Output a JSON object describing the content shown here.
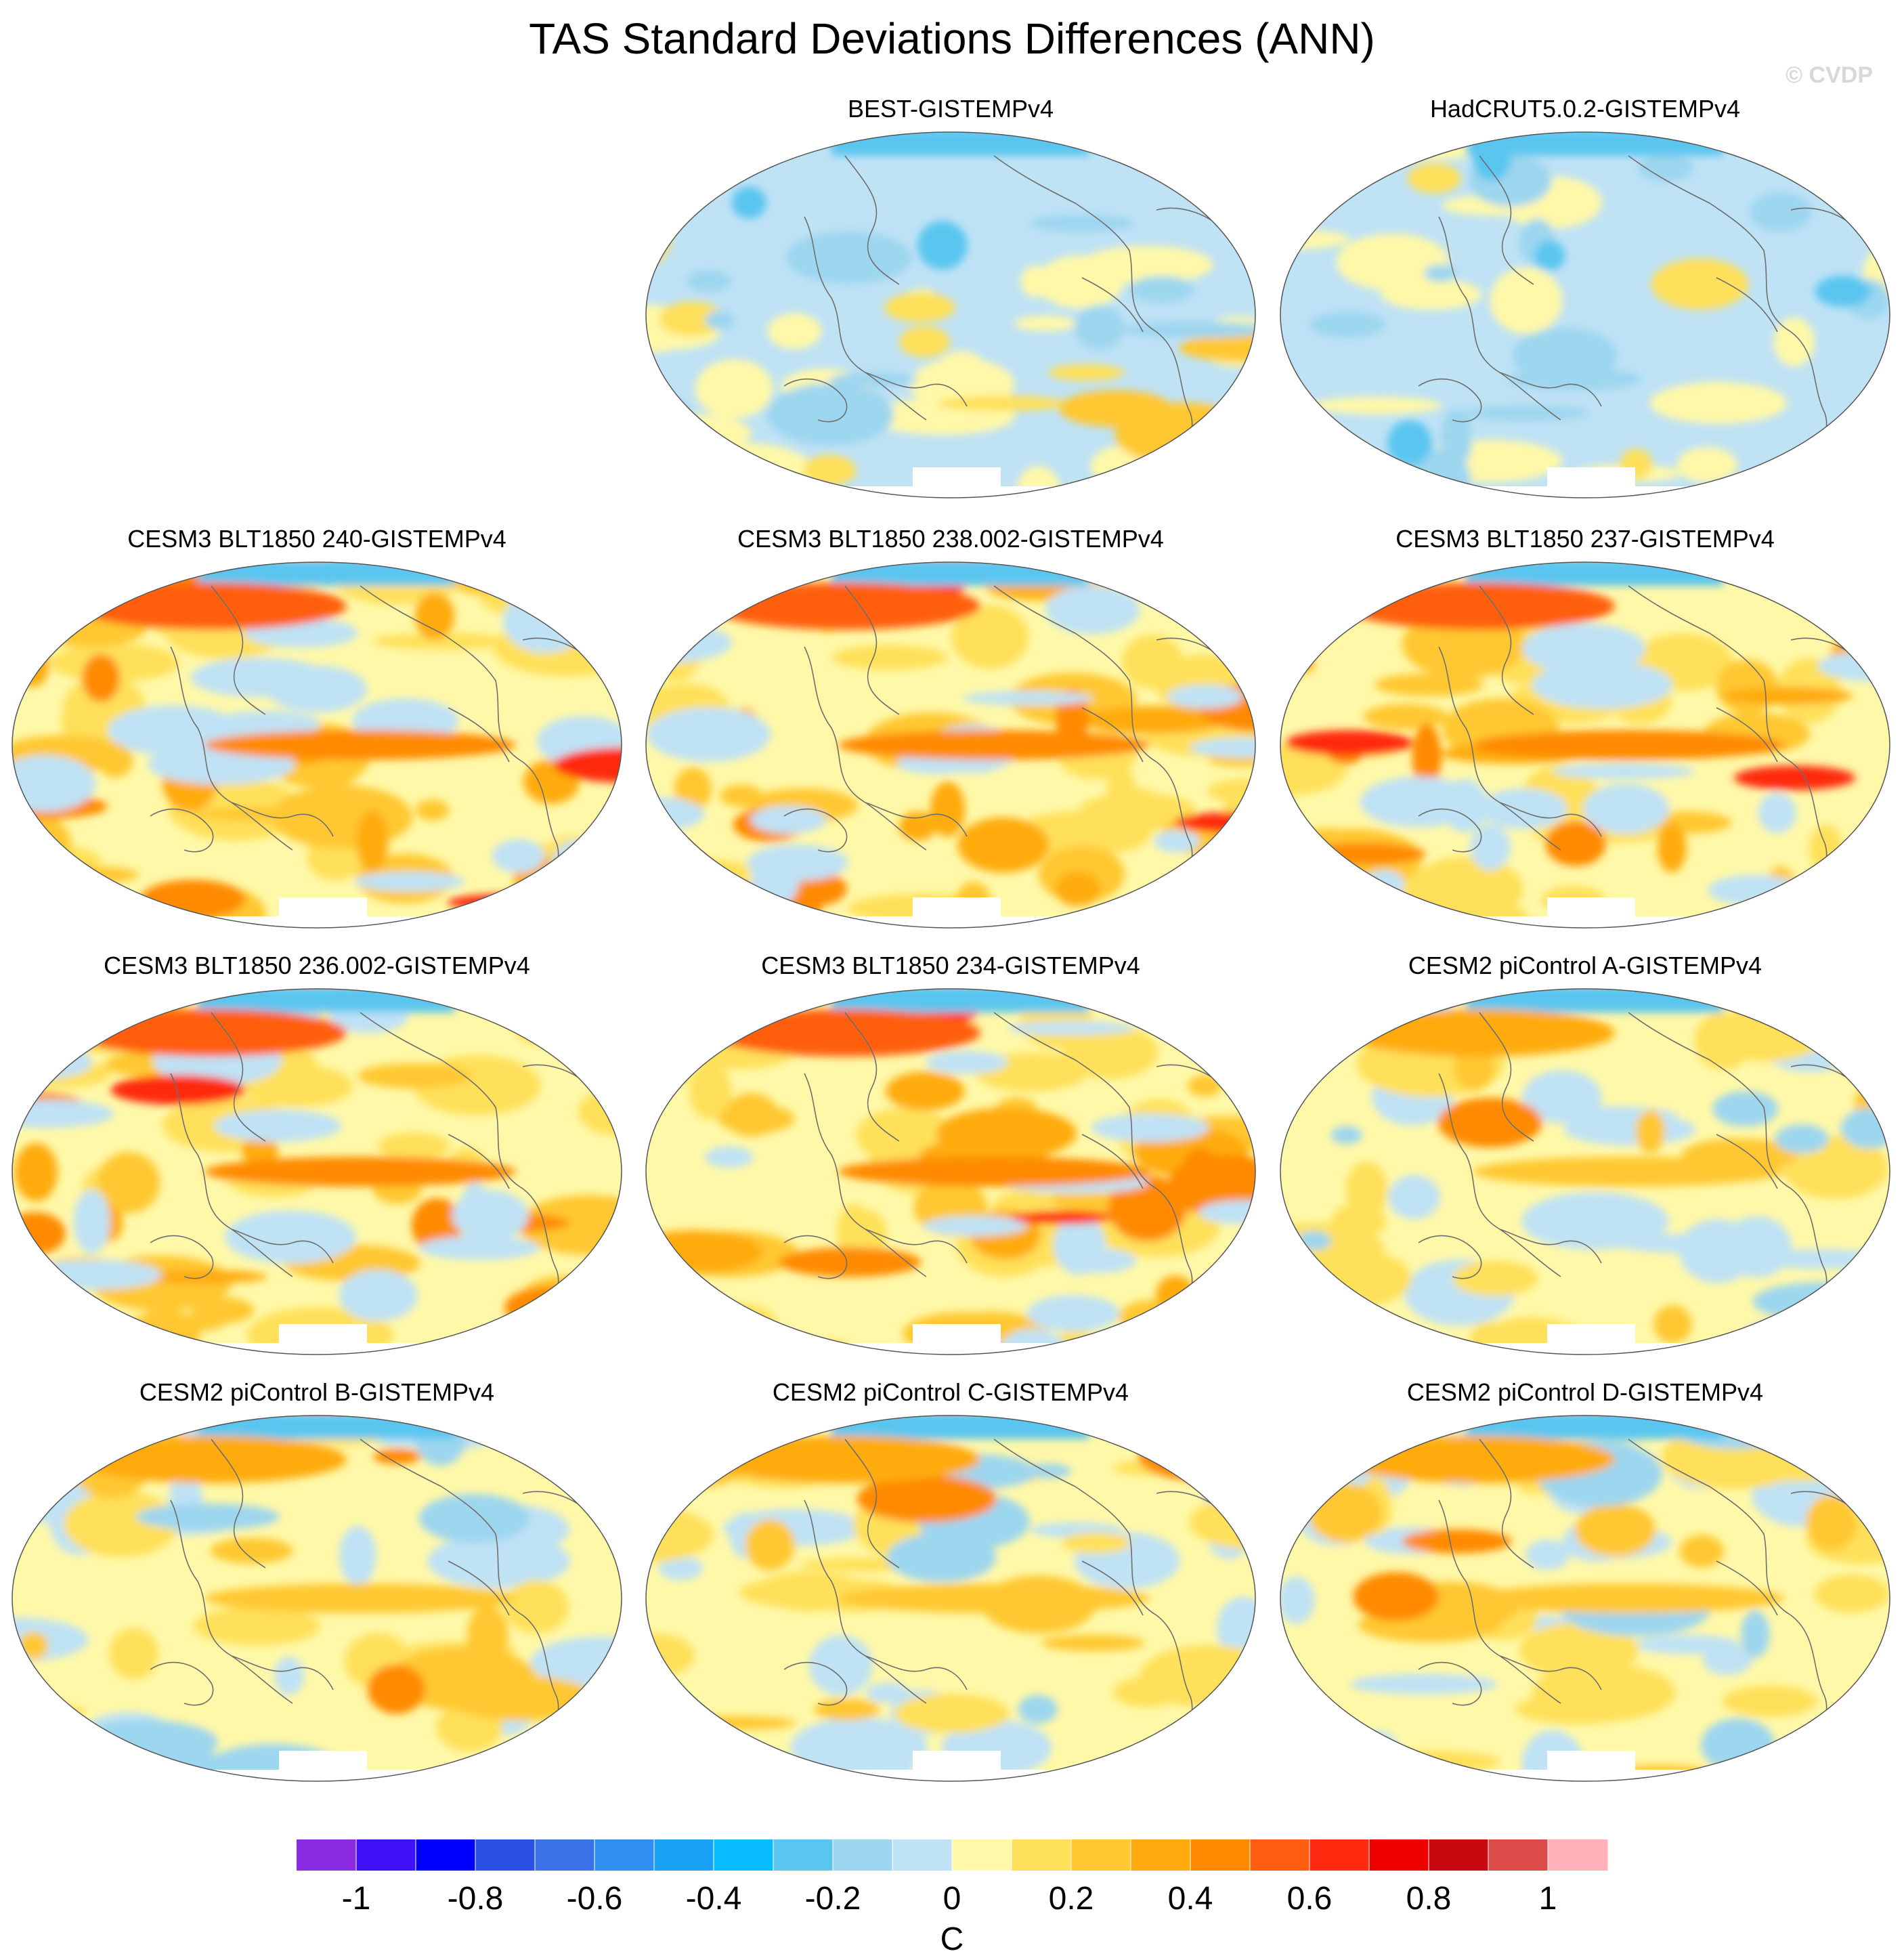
{
  "title": "TAS Standard Deviations Differences (ANN)",
  "credit": "© CVDP",
  "panels": [
    {
      "label": "BEST-GISTEMPv4",
      "style": "obs1"
    },
    {
      "label": "HadCRUT5.0.2-GISTEMPv4",
      "style": "obs2"
    },
    {
      "label": "CESM3 BLT1850 240-GISTEMPv4",
      "style": "warm"
    },
    {
      "label": "CESM3 BLT1850 238.002-GISTEMPv4",
      "style": "warm"
    },
    {
      "label": "CESM3 BLT1850 237-GISTEMPv4",
      "style": "warm"
    },
    {
      "label": "CESM3 BLT1850 236.002-GISTEMPv4",
      "style": "warm"
    },
    {
      "label": "CESM3 BLT1850 234-GISTEMPv4",
      "style": "warm"
    },
    {
      "label": "CESM2 piControl A-GISTEMPv4",
      "style": "mild"
    },
    {
      "label": "CESM2 piControl B-GISTEMPv4",
      "style": "mild"
    },
    {
      "label": "CESM2 piControl C-GISTEMPv4",
      "style": "mild"
    },
    {
      "label": "CESM2 piControl D-GISTEMPv4",
      "style": "mild"
    }
  ],
  "colorbar": {
    "colors": [
      "#8a2be2",
      "#3d10f5",
      "#0000ff",
      "#2a50e6",
      "#3a72e8",
      "#2f8ff0",
      "#1aa3f5",
      "#08bcff",
      "#5ac6f0",
      "#9dd6ef",
      "#bfe2f5",
      "#fff8a8",
      "#ffe05a",
      "#ffc830",
      "#ffab10",
      "#ff8a00",
      "#ff5e10",
      "#ff2a10",
      "#ee0000",
      "#c80a10",
      "#dd4a4a",
      "#ffb0b8"
    ],
    "tick_labels": [
      "-1",
      "-0.8",
      "-0.6",
      "-0.4",
      "-0.2",
      "0",
      "0.2",
      "0.4",
      "0.6",
      "0.8",
      "1"
    ],
    "units": "C"
  }
}
